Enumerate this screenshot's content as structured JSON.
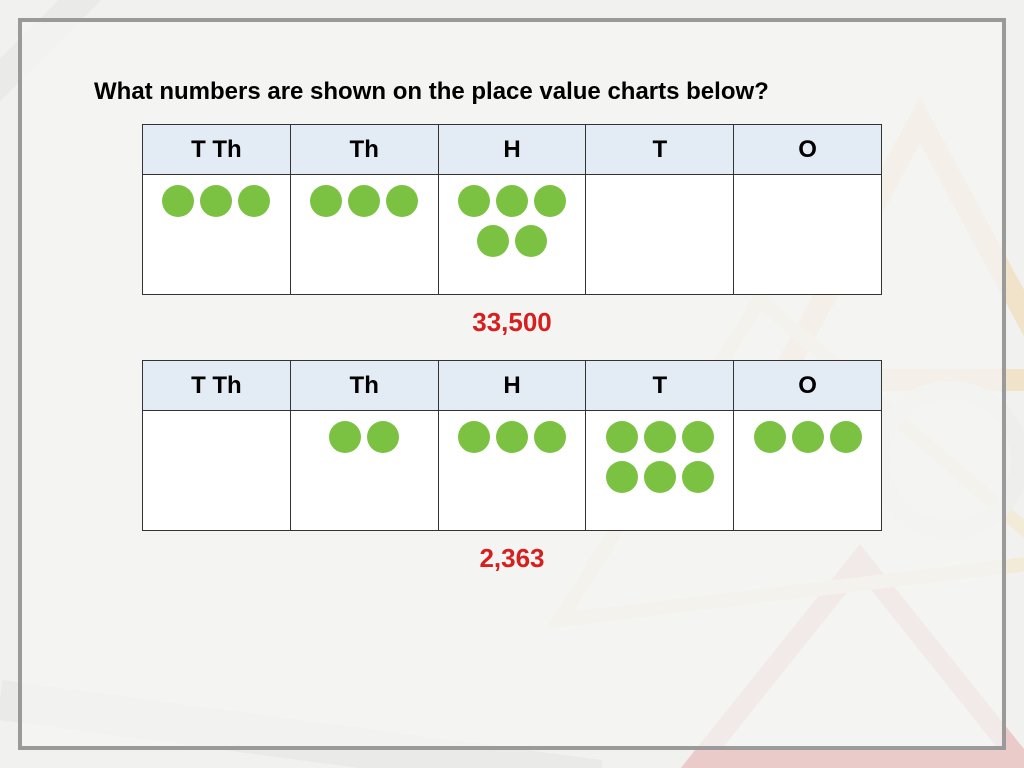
{
  "question": "What numbers are shown on the place value charts below?",
  "headers": [
    "T Th",
    "Th",
    "H",
    "T",
    "O"
  ],
  "chart1": {
    "counts": [
      3,
      3,
      5,
      0,
      0
    ],
    "answer": "33,500"
  },
  "chart2": {
    "counts": [
      0,
      2,
      3,
      6,
      3
    ],
    "answer": "2,363"
  },
  "style": {
    "dot_color": "#7cc242",
    "header_bg": "#e3ecf4",
    "answer_color": "#d61f1f",
    "frame_border": "#9a9a9a",
    "row_max": 3
  }
}
